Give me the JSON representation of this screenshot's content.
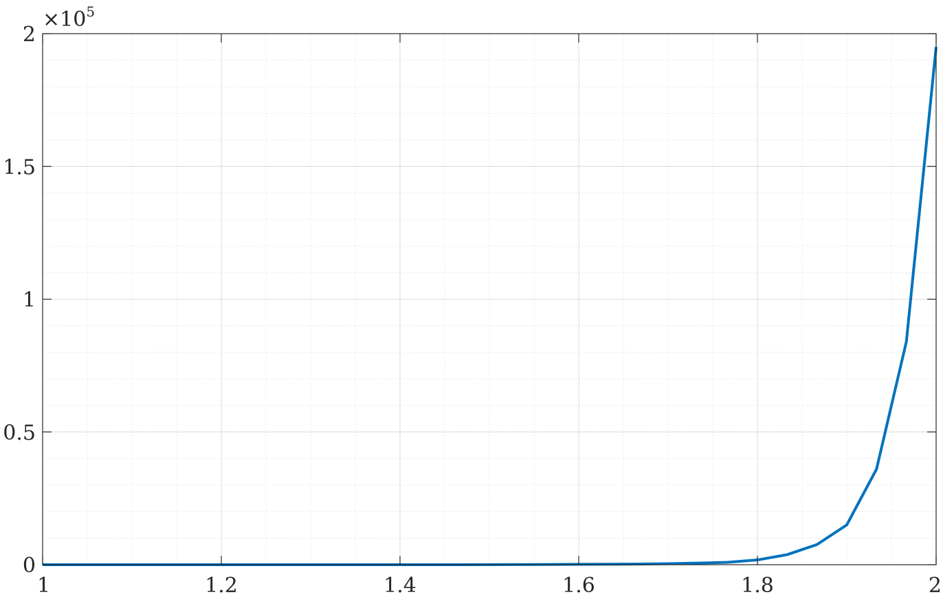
{
  "chart_data": {
    "type": "line",
    "title": "",
    "xlabel": "",
    "ylabel": "",
    "xlim": [
      1,
      2
    ],
    "ylim": [
      0,
      200000
    ],
    "grid": true,
    "minor_grid": true,
    "y_exponent_label": {
      "base": "×10",
      "power": "5"
    },
    "x_ticks": [
      {
        "value": 1,
        "label": "1"
      },
      {
        "value": 1.2,
        "label": "1.2"
      },
      {
        "value": 1.4,
        "label": "1.4"
      },
      {
        "value": 1.6,
        "label": "1.6"
      },
      {
        "value": 1.8,
        "label": "1.8"
      },
      {
        "value": 2,
        "label": "2"
      }
    ],
    "y_ticks": [
      {
        "value": 0,
        "label": "0"
      },
      {
        "value": 50000,
        "label": "0.5"
      },
      {
        "value": 100000,
        "label": "1"
      },
      {
        "value": 150000,
        "label": "1.5"
      },
      {
        "value": 200000,
        "label": "2"
      }
    ],
    "series": [
      {
        "color": "#0072bd",
        "x": [
          1,
          1.0333,
          1.0667,
          1.1,
          1.1333,
          1.1667,
          1.2,
          1.2333,
          1.2667,
          1.3,
          1.3333,
          1.3667,
          1.4,
          1.4333,
          1.4667,
          1.5,
          1.5333,
          1.5667,
          1.6,
          1.6333,
          1.6667,
          1.7,
          1.7333,
          1.7667,
          1.8,
          1.8333,
          1.8667,
          1.9,
          1.9333,
          1.9667,
          2
        ],
        "y": [
          0,
          0,
          0,
          0,
          0,
          0,
          0,
          0,
          0,
          0,
          0,
          0,
          0,
          0,
          5,
          30,
          60,
          100,
          150,
          200,
          250,
          400,
          600,
          900,
          1800,
          3800,
          7600,
          15000,
          36000,
          84000,
          195000
        ]
      }
    ]
  }
}
